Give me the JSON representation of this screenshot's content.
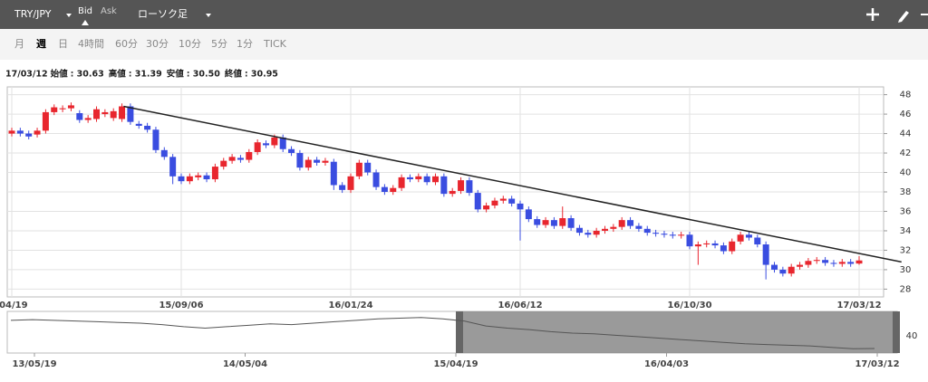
{
  "toolbar": {
    "symbol": "TRY/JPY",
    "bid": "Bid",
    "ask": "Ask",
    "chart_kind": "ローソク足"
  },
  "timeframes": [
    "月",
    "週",
    "日",
    "4時間",
    "60分",
    "30分",
    "10分",
    "5分",
    "1分",
    "TICK"
  ],
  "info": {
    "date": "17/03/12",
    "items": [
      {
        "label": "始値",
        "value": "30.63"
      },
      {
        "label": "高値",
        "value": "31.39"
      },
      {
        "label": "安値",
        "value": "30.50"
      },
      {
        "label": "終値",
        "value": "30.95"
      }
    ]
  },
  "chart_data": {
    "type": "candlestick",
    "up_color": "#e8262e",
    "down_color": "#3a4de0",
    "categories": [
      "/04/19",
      null,
      null,
      null,
      null,
      null,
      null,
      null,
      null,
      null,
      null,
      null,
      null,
      null,
      null,
      null,
      null,
      null,
      null,
      null,
      "15/09/06",
      null,
      null,
      null,
      null,
      null,
      null,
      null,
      null,
      null,
      null,
      null,
      null,
      null,
      null,
      null,
      null,
      null,
      null,
      null,
      "16/01/24",
      null,
      null,
      null,
      null,
      null,
      null,
      null,
      null,
      null,
      null,
      null,
      null,
      null,
      null,
      null,
      null,
      null,
      null,
      null,
      "16/06/12",
      null,
      null,
      null,
      null,
      null,
      null,
      null,
      null,
      null,
      null,
      null,
      null,
      null,
      null,
      null,
      null,
      null,
      null,
      null,
      "16/10/30",
      null,
      null,
      null,
      null,
      null,
      null,
      null,
      null,
      null,
      null,
      null,
      null,
      null,
      null,
      null,
      null,
      null,
      null,
      null,
      "17/03/12"
    ],
    "open": [
      44.0,
      44.3,
      44.0,
      43.9,
      44.3,
      46.2,
      46.5,
      46.6,
      46.1,
      45.4,
      45.5,
      46.0,
      45.6,
      45.5,
      46.8,
      45.0,
      44.8,
      44.4,
      42.3,
      41.6,
      39.6,
      39.1,
      39.5,
      39.7,
      39.3,
      40.6,
      41.2,
      41.5,
      41.3,
      42.1,
      43.0,
      42.8,
      43.6,
      42.4,
      42.0,
      40.5,
      41.3,
      41.0,
      41.1,
      38.7,
      38.2,
      39.6,
      41.0,
      40.0,
      38.5,
      38.0,
      38.4,
      39.5,
      39.3,
      39.6,
      39.0,
      39.6,
      37.8,
      38.1,
      39.2,
      37.9,
      36.2,
      36.6,
      37.1,
      37.3,
      36.8,
      36.2,
      35.2,
      34.6,
      35.1,
      34.5,
      35.3,
      34.3,
      33.8,
      33.6,
      34.0,
      34.2,
      34.4,
      35.1,
      34.5,
      34.2,
      33.8,
      33.7,
      33.6,
      33.5,
      33.6,
      32.4,
      32.6,
      32.7,
      32.5,
      31.9,
      32.9,
      33.6,
      33.3,
      32.6,
      30.5,
      30.0,
      29.6,
      30.3,
      30.5,
      30.9,
      31.0,
      30.7,
      30.6,
      30.8,
      30.63
    ],
    "high": [
      44.6,
      44.6,
      44.3,
      44.6,
      46.5,
      47.0,
      46.9,
      47.2,
      46.4,
      45.9,
      46.8,
      46.5,
      46.6,
      47.1,
      47.1,
      45.3,
      45.1,
      44.7,
      42.6,
      41.9,
      39.9,
      39.9,
      40.0,
      40.0,
      40.9,
      41.5,
      41.9,
      41.8,
      42.4,
      43.4,
      43.3,
      43.9,
      43.9,
      42.7,
      42.3,
      41.6,
      41.6,
      41.5,
      41.4,
      39.0,
      39.9,
      41.3,
      41.3,
      40.3,
      38.8,
      38.7,
      39.8,
      39.8,
      39.9,
      39.9,
      39.9,
      39.9,
      38.4,
      39.5,
      39.5,
      38.2,
      36.9,
      37.4,
      37.6,
      37.6,
      37.1,
      36.5,
      35.5,
      35.4,
      35.4,
      36.5,
      35.6,
      34.6,
      34.1,
      34.3,
      34.5,
      34.7,
      35.4,
      35.4,
      34.8,
      34.5,
      34.1,
      34.0,
      33.9,
      33.9,
      33.9,
      32.9,
      33.0,
      33.0,
      32.8,
      33.2,
      33.9,
      33.9,
      33.6,
      32.9,
      30.8,
      30.3,
      30.6,
      30.8,
      31.2,
      31.3,
      31.3,
      31.0,
      31.1,
      31.1,
      31.39
    ],
    "low": [
      43.7,
      43.7,
      43.4,
      43.6,
      44.0,
      45.9,
      46.2,
      46.3,
      45.1,
      45.1,
      45.2,
      45.7,
      45.3,
      45.2,
      44.9,
      44.5,
      44.1,
      42.0,
      41.3,
      38.8,
      38.8,
      38.8,
      39.2,
      39.0,
      39.0,
      40.3,
      40.9,
      41.0,
      41.0,
      41.8,
      42.5,
      42.5,
      42.1,
      41.7,
      40.2,
      40.2,
      40.7,
      40.7,
      38.2,
      37.9,
      37.9,
      39.3,
      39.7,
      38.2,
      37.7,
      37.7,
      38.1,
      39.0,
      39.0,
      38.7,
      38.7,
      37.5,
      37.5,
      37.8,
      37.6,
      35.9,
      35.9,
      36.3,
      36.8,
      36.5,
      33.0,
      34.9,
      34.3,
      34.3,
      34.2,
      34.2,
      34.0,
      33.5,
      33.3,
      33.3,
      33.7,
      33.9,
      34.1,
      34.2,
      33.9,
      33.5,
      33.4,
      33.3,
      33.2,
      33.2,
      32.1,
      30.5,
      32.3,
      32.2,
      31.6,
      31.6,
      32.6,
      33.0,
      32.3,
      29.0,
      29.7,
      29.3,
      29.3,
      30.0,
      30.2,
      30.6,
      30.4,
      30.3,
      30.3,
      30.3,
      30.5
    ],
    "close": [
      44.3,
      44.0,
      43.7,
      44.3,
      46.2,
      46.7,
      46.6,
      46.9,
      45.4,
      45.6,
      46.5,
      46.2,
      46.3,
      46.8,
      45.2,
      44.8,
      44.4,
      42.3,
      41.6,
      39.6,
      39.1,
      39.6,
      39.7,
      39.3,
      40.6,
      41.2,
      41.6,
      41.3,
      42.1,
      43.1,
      42.8,
      43.6,
      42.4,
      42.0,
      40.5,
      41.3,
      41.0,
      41.2,
      38.7,
      38.2,
      39.6,
      41.0,
      40.0,
      38.5,
      38.0,
      38.4,
      39.5,
      39.3,
      39.6,
      39.0,
      39.6,
      37.8,
      38.1,
      39.2,
      37.9,
      36.2,
      36.6,
      37.1,
      37.3,
      36.8,
      36.2,
      35.2,
      34.6,
      35.1,
      34.5,
      35.3,
      34.3,
      33.8,
      33.6,
      34.0,
      34.2,
      34.4,
      35.1,
      34.5,
      34.2,
      33.8,
      33.7,
      33.6,
      33.5,
      33.6,
      32.4,
      32.6,
      32.7,
      32.5,
      31.9,
      32.9,
      33.6,
      33.3,
      32.6,
      30.5,
      30.0,
      29.6,
      30.3,
      30.5,
      30.9,
      31.0,
      30.7,
      30.6,
      30.8,
      30.6,
      30.95
    ],
    "ylim": [
      27.2,
      48.8
    ],
    "yticks": [
      28,
      30,
      32,
      34,
      36,
      38,
      40,
      42,
      44,
      46,
      48
    ],
    "grid": true,
    "trendline": {
      "x": [
        13.2,
        105
      ],
      "y": [
        46.8,
        30.8
      ],
      "color": "#222222"
    },
    "navigator": {
      "labels": [
        "13/05/19",
        "14/05/04",
        "15/04/19",
        "16/04/03",
        "17/03/12"
      ],
      "ylim": [
        28,
        56
      ],
      "yticks": [
        40
      ],
      "color": "#555555",
      "values": [
        51,
        51.5,
        51,
        50.5,
        50,
        49.5,
        49,
        48,
        46.5,
        45.5,
        46.5,
        47.5,
        48.5,
        48,
        49,
        50,
        51,
        52,
        52.5,
        53,
        52,
        50.5,
        47,
        45.5,
        44.5,
        43,
        42,
        41.5,
        40.5,
        39.5,
        38.5,
        37.5,
        36.5,
        35.5,
        34.5,
        34,
        33.5,
        33,
        32,
        31,
        31.2
      ]
    }
  }
}
